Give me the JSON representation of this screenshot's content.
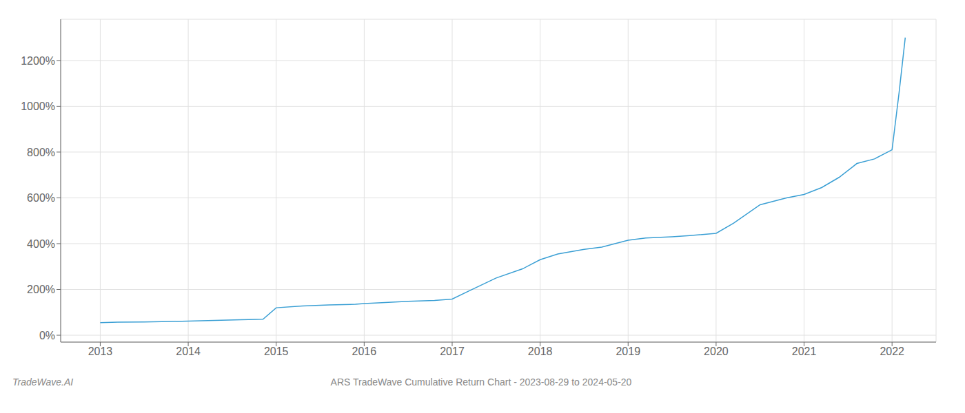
{
  "chart_data": {
    "type": "line",
    "title": "ARS TradeWave Cumulative Return Chart - 2023-08-29 to 2024-05-20",
    "annotations": [
      "TradeWave.AI"
    ],
    "color": "#3a9fd4",
    "grid": true,
    "x": [
      2013.0,
      2013.2,
      2013.5,
      2013.8,
      2014.0,
      2014.3,
      2014.6,
      2014.85,
      2015.0,
      2015.3,
      2015.6,
      2015.9,
      2016.0,
      2016.2,
      2016.5,
      2016.8,
      2017.0,
      2017.2,
      2017.5,
      2017.8,
      2018.0,
      2018.2,
      2018.5,
      2018.7,
      2019.0,
      2019.2,
      2019.5,
      2019.7,
      2020.0,
      2020.2,
      2020.5,
      2020.8,
      2021.0,
      2021.2,
      2021.4,
      2021.55,
      2021.6,
      2021.8,
      2022.0,
      2022.08,
      2022.15
    ],
    "values": [
      55,
      57,
      58,
      60,
      62,
      65,
      68,
      70,
      120,
      128,
      132,
      135,
      138,
      142,
      148,
      152,
      158,
      195,
      250,
      290,
      330,
      355,
      375,
      385,
      415,
      425,
      430,
      435,
      445,
      490,
      570,
      600,
      615,
      645,
      690,
      735,
      750,
      770,
      810,
      1060,
      1300
    ],
    "xlim": [
      2012.55,
      2022.5
    ],
    "xticks": [
      2013,
      2014,
      2015,
      2016,
      2017,
      2018,
      2019,
      2020,
      2021,
      2022
    ],
    "ylim": [
      -30,
      1380
    ],
    "yticks": [
      {
        "value": 0,
        "label": "0%"
      },
      {
        "value": 200,
        "label": "200%"
      },
      {
        "value": 400,
        "label": "400%"
      },
      {
        "value": 600,
        "label": "600%"
      },
      {
        "value": 800,
        "label": "800%"
      },
      {
        "value": 1000,
        "label": "1000%"
      },
      {
        "value": 1200,
        "label": "1200%"
      }
    ]
  }
}
